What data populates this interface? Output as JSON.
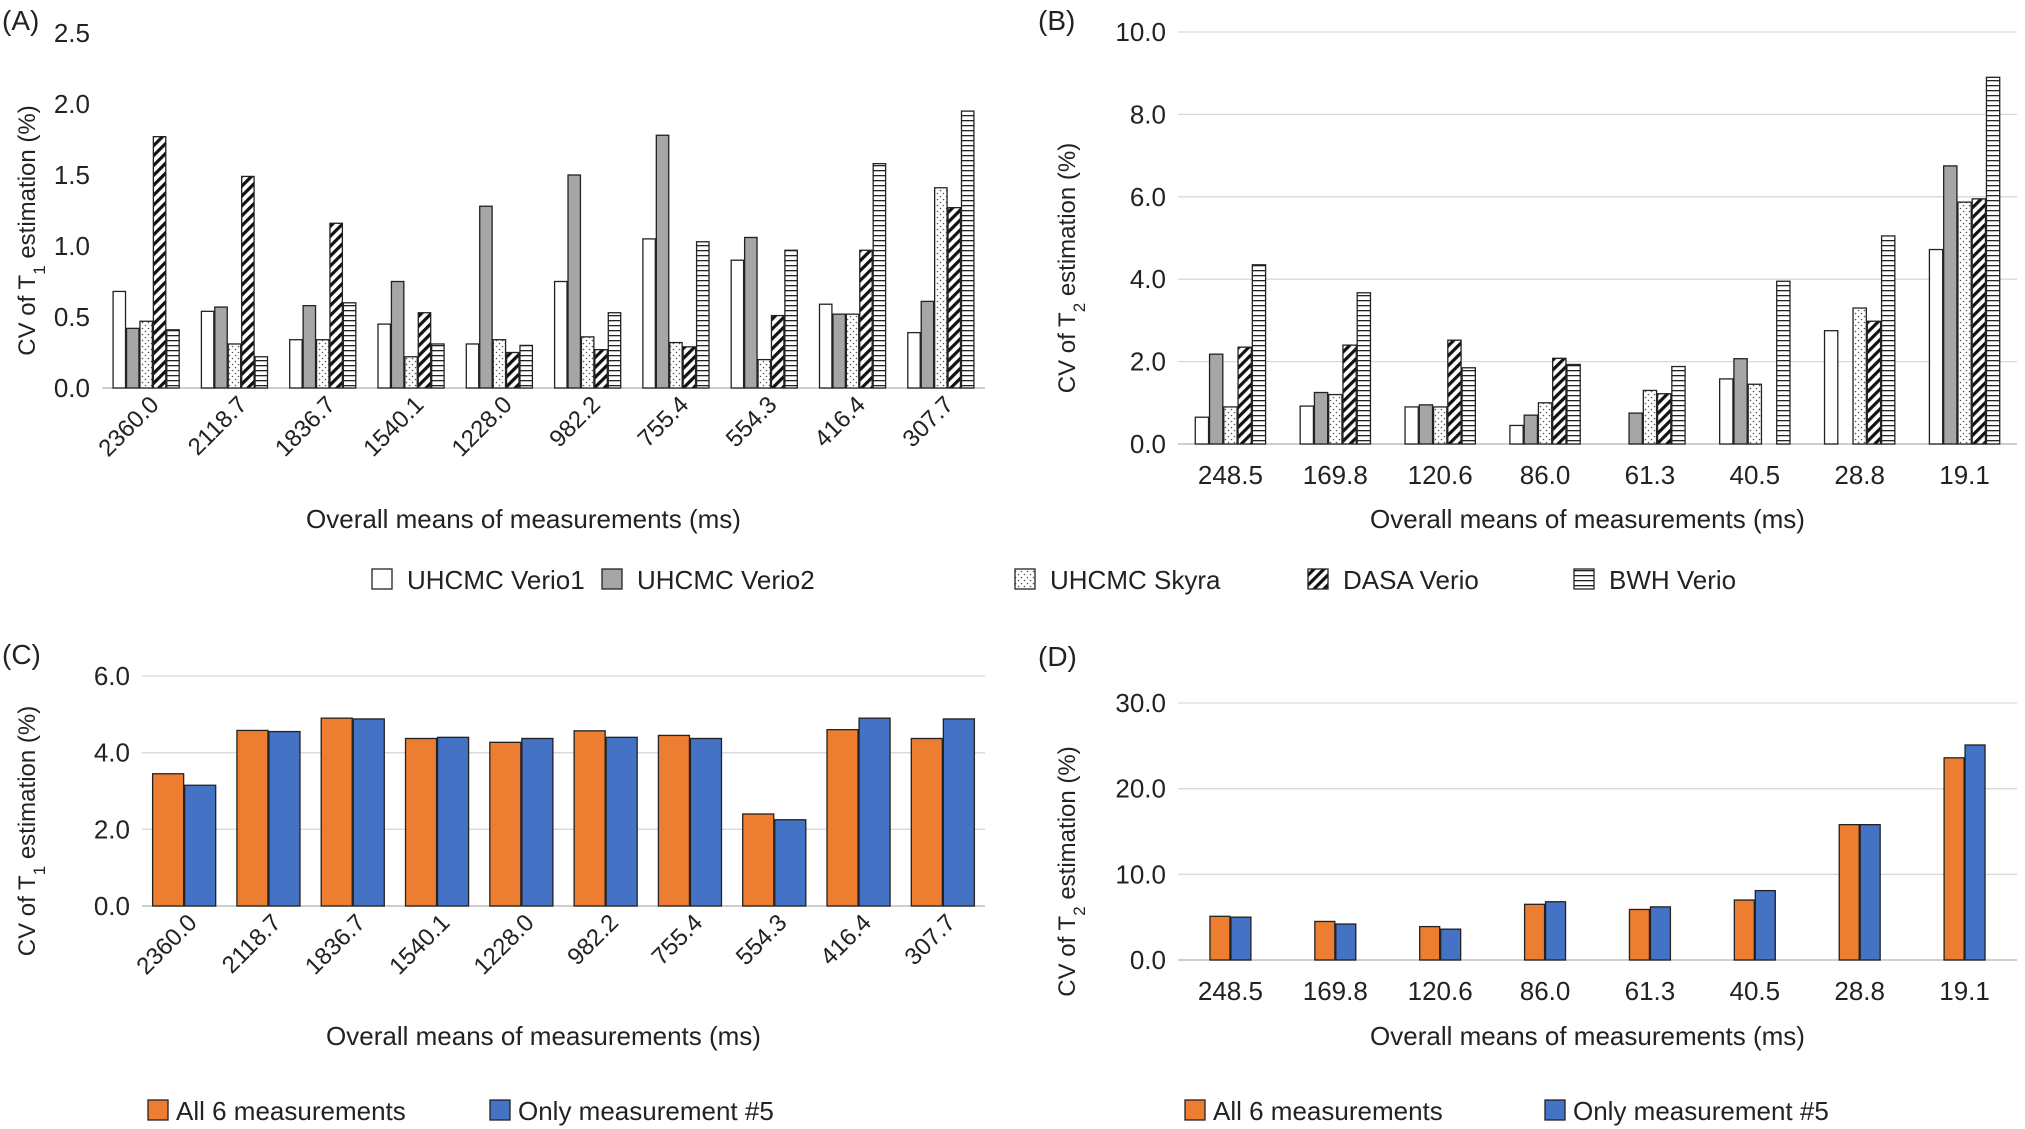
{
  "chart_data": [
    {
      "panel_label": "(A)",
      "type": "bar",
      "ylabel_parts": [
        "CV of T",
        "1",
        " estimation (%)"
      ],
      "xlabel": "Overall means of measurements (ms)",
      "categories": [
        "2360.0",
        "2118.7",
        "1836.7",
        "1540.1",
        "1228.0",
        "982.2",
        "755.4",
        "554.3",
        "416.4",
        "307.7"
      ],
      "yticks": [
        "0.0",
        "0.5",
        "1.0",
        "1.5",
        "2.0",
        "2.5"
      ],
      "ylim": [
        0,
        2.5
      ],
      "grid": false,
      "tick_rotation": -45,
      "series": [
        {
          "name": "UHCMC Verio1",
          "values": [
            0.68,
            0.54,
            0.34,
            0.45,
            0.31,
            0.75,
            1.05,
            0.9,
            0.59,
            0.39
          ]
        },
        {
          "name": "UHCMC Verio2",
          "values": [
            0.42,
            0.57,
            0.58,
            0.75,
            1.28,
            1.5,
            1.78,
            1.06,
            0.52,
            0.61
          ]
        },
        {
          "name": "UHCMC Skyra",
          "values": [
            0.47,
            0.31,
            0.34,
            0.22,
            0.34,
            0.36,
            0.32,
            0.2,
            0.52,
            1.41
          ]
        },
        {
          "name": "DASA Verio",
          "values": [
            1.77,
            1.49,
            1.16,
            0.53,
            0.25,
            0.27,
            0.29,
            0.51,
            0.97,
            1.27
          ]
        },
        {
          "name": "BWH Verio",
          "values": [
            0.41,
            0.22,
            0.6,
            0.31,
            0.3,
            0.53,
            1.03,
            0.97,
            1.58,
            1.95
          ]
        }
      ]
    },
    {
      "panel_label": "(B)",
      "type": "bar",
      "ylabel_parts": [
        "CV of T",
        "2",
        " estimation (%)"
      ],
      "xlabel": "Overall means of measurements (ms)",
      "categories": [
        "248.5",
        "169.8",
        "120.6",
        "86.0",
        "61.3",
        "40.5",
        "28.8",
        "19.1"
      ],
      "yticks": [
        "0.0",
        "2.0",
        "4.0",
        "6.0",
        "8.0",
        "10.0"
      ],
      "ylim": [
        0,
        10
      ],
      "grid": true,
      "tick_rotation": 0,
      "series": [
        {
          "name": "UHCMC Verio1",
          "values": [
            0.65,
            0.92,
            0.9,
            0.45,
            0.0,
            1.58,
            2.75,
            4.72
          ]
        },
        {
          "name": "UHCMC Verio2",
          "values": [
            2.18,
            1.25,
            0.95,
            0.7,
            0.75,
            2.07,
            0.0,
            6.75
          ]
        },
        {
          "name": "UHCMC Skyra",
          "values": [
            0.9,
            1.2,
            0.9,
            1.0,
            1.3,
            1.45,
            3.3,
            5.87
          ]
        },
        {
          "name": "DASA Verio",
          "values": [
            2.35,
            2.4,
            2.52,
            2.08,
            1.22,
            0.0,
            2.98,
            5.95
          ]
        },
        {
          "name": "BWH Verio",
          "values": [
            4.35,
            3.67,
            1.85,
            1.93,
            1.88,
            3.95,
            5.05,
            8.9
          ]
        }
      ]
    },
    {
      "panel_label": "(C)",
      "type": "bar",
      "ylabel_parts": [
        "CV of T",
        "1",
        " estimation (%)"
      ],
      "xlabel": "Overall means of measurements (ms)",
      "categories": [
        "2360.0",
        "2118.7",
        "1836.7",
        "1540.1",
        "1228.0",
        "982.2",
        "755.4",
        "554.3",
        "416.4",
        "307.7"
      ],
      "yticks": [
        "0.0",
        "2.0",
        "4.0",
        "6.0"
      ],
      "ylim": [
        0,
        6
      ],
      "grid": true,
      "tick_rotation": -45,
      "series": [
        {
          "name": "All 6 measurements",
          "values": [
            3.45,
            4.58,
            4.9,
            4.37,
            4.27,
            4.57,
            4.45,
            2.4,
            4.6,
            4.37
          ]
        },
        {
          "name": "Only measurement #5",
          "values": [
            3.15,
            4.55,
            4.88,
            4.4,
            4.37,
            4.4,
            4.37,
            2.25,
            4.9,
            4.88
          ]
        }
      ]
    },
    {
      "panel_label": "(D)",
      "type": "bar",
      "ylabel_parts": [
        "CV of T",
        "2",
        " estimation (%)"
      ],
      "xlabel": "Overall means of measurements (ms)",
      "categories": [
        "248.5",
        "169.8",
        "120.6",
        "86.0",
        "61.3",
        "40.5",
        "28.8",
        "19.1"
      ],
      "yticks": [
        "0.0",
        "10.0",
        "20.0",
        "30.0"
      ],
      "ylim": [
        0,
        30
      ],
      "grid": true,
      "tick_rotation": 0,
      "series": [
        {
          "name": "All 6 measurements",
          "values": [
            5.1,
            4.5,
            3.9,
            6.5,
            5.9,
            7.0,
            15.8,
            23.6
          ]
        },
        {
          "name": "Only measurement #5",
          "values": [
            5.0,
            4.2,
            3.6,
            6.8,
            6.2,
            8.1,
            15.8,
            25.1
          ]
        }
      ]
    }
  ],
  "legends": {
    "top": [
      {
        "label": "UHCMC Verio1",
        "pattern": "white"
      },
      {
        "label": "UHCMC Verio2",
        "pattern": "gray"
      },
      {
        "label": "UHCMC Skyra",
        "pattern": "dots"
      },
      {
        "label": "DASA Verio",
        "pattern": "diagonal"
      },
      {
        "label": "BWH Verio",
        "pattern": "horizontal"
      }
    ],
    "bottom": [
      {
        "label": "All 6 measurements",
        "color": "#ED7D31"
      },
      {
        "label": "Only measurement #5",
        "color": "#4472C4"
      }
    ]
  },
  "colors": {
    "orange": "#ED7D31",
    "blue": "#4472C4",
    "gray_fill": "#A6A6A6",
    "grid": "#D9D9D9"
  }
}
